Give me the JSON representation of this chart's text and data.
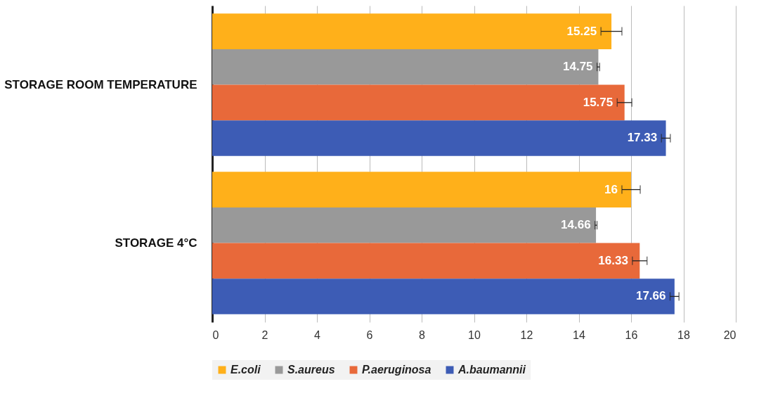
{
  "chart_data": {
    "type": "bar",
    "orientation": "horizontal",
    "categories": [
      "STORAGE ROOM TEMPERATURE",
      "STORAGE 4°C"
    ],
    "series": [
      {
        "name": "E.coli",
        "color": "#ffb01a",
        "values": [
          15.25,
          16
        ],
        "errors": [
          0.4,
          0.35
        ]
      },
      {
        "name": "S.aureus",
        "color": "#999999",
        "values": [
          14.75,
          14.66
        ],
        "errors": [
          0.05,
          0.04
        ]
      },
      {
        "name": "P.aeruginosa",
        "color": "#e8693a",
        "values": [
          15.75,
          16.33
        ],
        "errors": [
          0.28,
          0.28
        ]
      },
      {
        "name": "A.baumannii",
        "color": "#3d5cb5",
        "values": [
          17.33,
          17.66
        ],
        "errors": [
          0.17,
          0.17
        ]
      }
    ],
    "xlim": [
      0,
      20
    ],
    "xticks": [
      0,
      2,
      4,
      6,
      8,
      10,
      12,
      14,
      16,
      18,
      20
    ],
    "grid": "x",
    "legend": "bottom",
    "data_labels": true
  }
}
